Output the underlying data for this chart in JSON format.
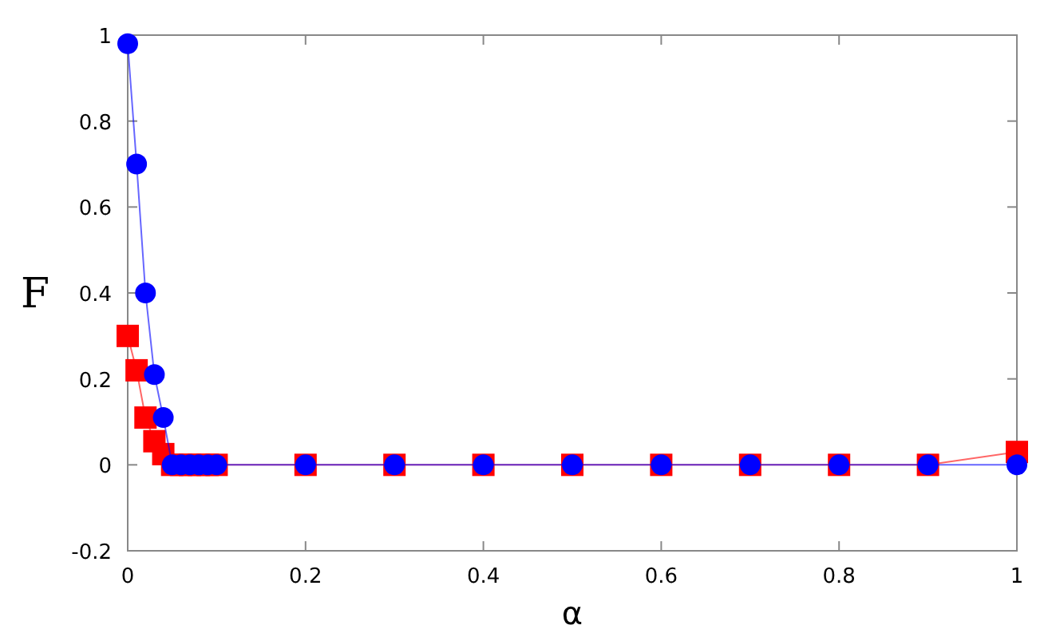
{
  "chart_data": {
    "type": "line",
    "xlabel": "α",
    "ylabel": "F",
    "x": [
      0,
      0.01,
      0.02,
      0.03,
      0.04,
      0.05,
      0.06,
      0.07,
      0.08,
      0.09,
      0.1,
      0.2,
      0.3,
      0.4,
      0.5,
      0.6,
      0.7,
      0.8,
      0.9,
      1
    ],
    "series": [
      {
        "color": "#ff0000",
        "marker": "square",
        "values": [
          0.3,
          0.22,
          0.11,
          0.055,
          0.025,
          0,
          0,
          0,
          0,
          0,
          0,
          0,
          0,
          0,
          0,
          0,
          0,
          0,
          0,
          0.03
        ]
      },
      {
        "color": "#0000ff",
        "marker": "circle",
        "values": [
          0.98,
          0.7,
          0.4,
          0.21,
          0.11,
          0,
          0,
          0,
          0,
          0,
          0,
          0,
          0,
          0,
          0,
          0,
          0,
          0,
          0,
          0
        ]
      }
    ],
    "xlim": [
      0,
      1
    ],
    "ylim": [
      -0.2,
      1
    ],
    "xticks": [
      0,
      0.2,
      0.4,
      0.6,
      0.8,
      1
    ],
    "yticks": [
      -0.2,
      0,
      0.2,
      0.4,
      0.6,
      0.8,
      1
    ],
    "grid": false
  }
}
